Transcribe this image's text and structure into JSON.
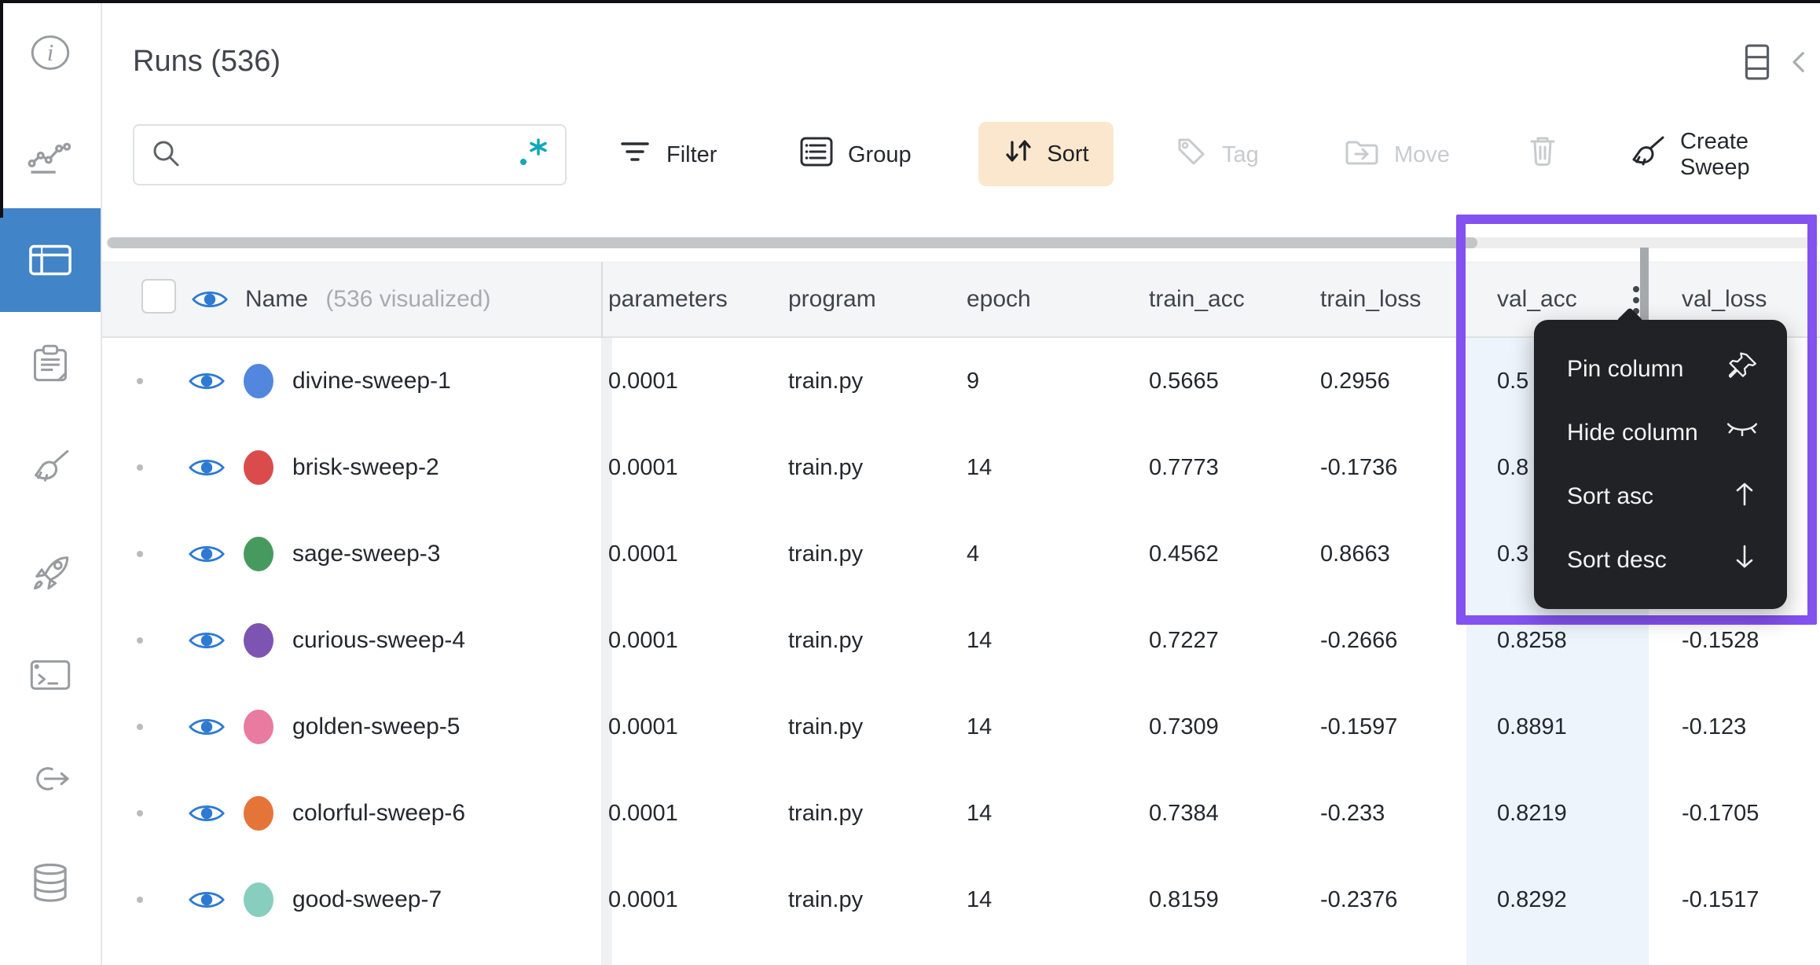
{
  "page": {
    "title": "Runs (536)"
  },
  "search": {
    "value": "",
    "placeholder": ""
  },
  "toolbar": {
    "filter": "Filter",
    "group": "Group",
    "sort": "Sort",
    "tag": "Tag",
    "move": "Move",
    "create_sweep": "Create Sweep"
  },
  "sidebar": {
    "items": [
      {
        "id": "info",
        "icon": "info-icon",
        "active": false
      },
      {
        "id": "charts",
        "icon": "line-chart-icon",
        "active": false
      },
      {
        "id": "runs-table",
        "icon": "table-icon",
        "active": true
      },
      {
        "id": "notes",
        "icon": "clipboard-icon",
        "active": false
      },
      {
        "id": "sweeps",
        "icon": "broom-icon",
        "active": false
      },
      {
        "id": "launch",
        "icon": "rocket-icon",
        "active": false
      },
      {
        "id": "logs",
        "icon": "terminal-icon",
        "active": false
      },
      {
        "id": "automations",
        "icon": "link-arrow-icon",
        "active": false
      },
      {
        "id": "artifacts",
        "icon": "database-icon",
        "active": false
      }
    ]
  },
  "header_icons": [
    {
      "id": "columns",
      "icon": "columns-icon"
    },
    {
      "id": "collapse",
      "icon": "chevron-left-icon"
    }
  ],
  "table": {
    "name_header": "Name",
    "name_suffix": "(536 visualized)",
    "columns": [
      {
        "key": "parameters",
        "label": "parameters"
      },
      {
        "key": "program",
        "label": "program"
      },
      {
        "key": "epoch",
        "label": "epoch"
      },
      {
        "key": "train_acc",
        "label": "train_acc"
      },
      {
        "key": "train_loss",
        "label": "train_loss"
      },
      {
        "key": "val_acc",
        "label": "val_acc",
        "has_menu": true
      },
      {
        "key": "val_loss",
        "label": "val_loss"
      }
    ],
    "rows": [
      {
        "name": "divine-sweep-1",
        "color": "#5387DD",
        "parameters": "0.0001",
        "program": "train.py",
        "epoch": "9",
        "train_acc": "0.5665",
        "train_loss": "0.2956",
        "val_acc": "0.5",
        "val_loss": ""
      },
      {
        "name": "brisk-sweep-2",
        "color": "#DA4C4C",
        "parameters": "0.0001",
        "program": "train.py",
        "epoch": "14",
        "train_acc": "0.7773",
        "train_loss": "-0.1736",
        "val_acc": "0.8",
        "val_loss": ""
      },
      {
        "name": "sage-sweep-3",
        "color": "#479A5F",
        "parameters": "0.0001",
        "program": "train.py",
        "epoch": "4",
        "train_acc": "0.4562",
        "train_loss": "0.8663",
        "val_acc": "0.3",
        "val_loss": ""
      },
      {
        "name": "curious-sweep-4",
        "color": "#7D54B2",
        "parameters": "0.0001",
        "program": "train.py",
        "epoch": "14",
        "train_acc": "0.7227",
        "train_loss": "-0.2666",
        "val_acc": "0.8258",
        "val_loss": "-0.1528"
      },
      {
        "name": "golden-sweep-5",
        "color": "#E87B9F",
        "parameters": "0.0001",
        "program": "train.py",
        "epoch": "14",
        "train_acc": "0.7309",
        "train_loss": "-0.1597",
        "val_acc": "0.8891",
        "val_loss": "-0.123"
      },
      {
        "name": "colorful-sweep-6",
        "color": "#E57439",
        "parameters": "0.0001",
        "program": "train.py",
        "epoch": "14",
        "train_acc": "0.7384",
        "train_loss": "-0.233",
        "val_acc": "0.8219",
        "val_loss": "-0.1705"
      },
      {
        "name": "good-sweep-7",
        "color": "#87CEBF",
        "parameters": "0.0001",
        "program": "train.py",
        "epoch": "14",
        "train_acc": "0.8159",
        "train_loss": "-0.2376",
        "val_acc": "0.8292",
        "val_loss": "-0.1517"
      }
    ]
  },
  "column_menu": {
    "items": [
      {
        "label": "Pin column",
        "icon": "pin-icon"
      },
      {
        "label": "Hide column",
        "icon": "eye-closed-icon"
      },
      {
        "label": "Sort asc",
        "icon": "arrow-up-icon"
      },
      {
        "label": "Sort desc",
        "icon": "arrow-down-icon"
      }
    ]
  },
  "colors": {
    "sidebar_active": "#4184C7",
    "eye_blue": "#2E7AD2",
    "annotation_purple": "#8352F0",
    "sort_button_bg": "#FBE7CD",
    "selected_column_tint": "#EDF4FB",
    "menu_bg": "#202225",
    "disabled_gray": "#C8CBCE"
  }
}
